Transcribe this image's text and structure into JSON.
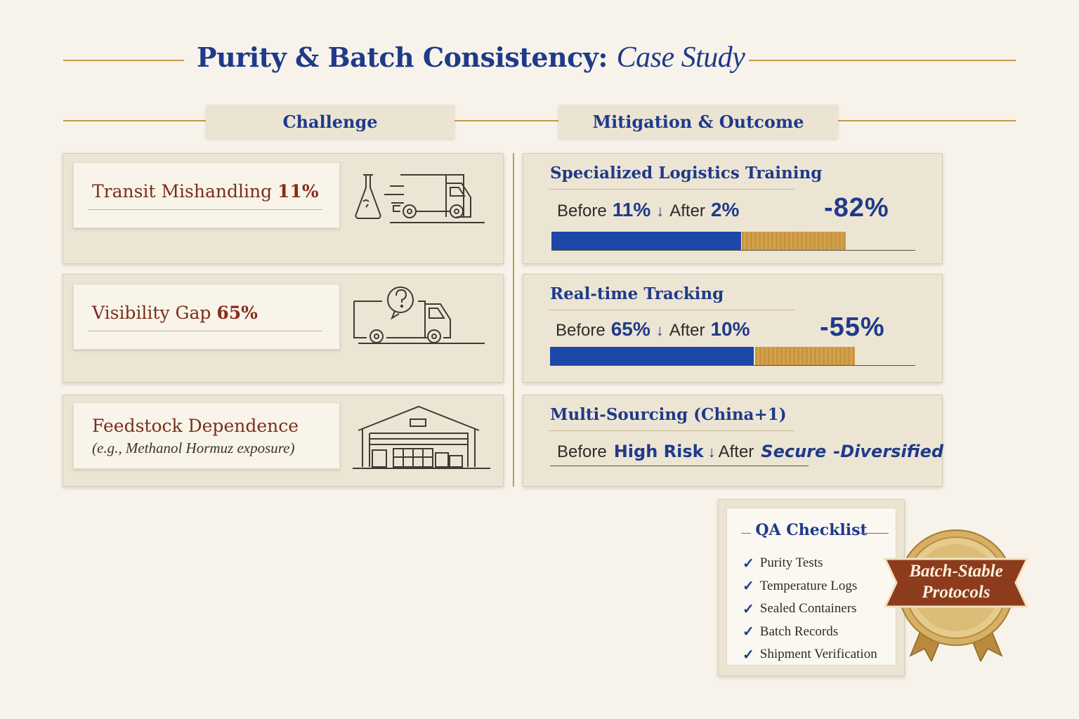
{
  "title": {
    "main": "Purity & Batch Consistency:",
    "sub": "Case Study"
  },
  "columns": {
    "challenge": "Challenge",
    "mitigation": "Mitigation & Outcome"
  },
  "challenges": [
    {
      "label": "Transit Mishandling",
      "value": "11%",
      "icon": "flask-truck-icon"
    },
    {
      "label": "Visibility Gap",
      "value": "65%",
      "icon": "truck-question-icon"
    },
    {
      "label": "Feedstock Dependence",
      "note": "(e.g., Methanol Hormuz exposure)",
      "icon": "warehouse-icon"
    }
  ],
  "mitigations": [
    {
      "title": "Specialized Logistics Training",
      "before_label": "Before",
      "before": "11%",
      "arrow": "↓",
      "after_label": "After",
      "after": "2%",
      "change": "-82%",
      "before_pct": 11,
      "after_pct": 2
    },
    {
      "title": "Real-time Tracking",
      "before_label": "Before",
      "before": "65%",
      "arrow": "↓",
      "after_label": "After",
      "after": "10%",
      "change": "-55%",
      "before_pct": 65,
      "after_pct": 10
    },
    {
      "title": "Multi-Sourcing (China+1)",
      "before_label": "Before",
      "before": "High Risk",
      "arrow": "↓",
      "after_label": "After",
      "after": "Secure",
      "after_extra": "-Diversified"
    }
  ],
  "qa": {
    "title": "QA Checklist",
    "items": [
      "Purity Tests",
      "Temperature Logs",
      "Sealed Containers",
      "Batch Records",
      "Shipment Verification"
    ]
  },
  "badge": {
    "line1": "Batch-Stable",
    "line2": "Protocols"
  },
  "colors": {
    "navy": "#1f3a8a",
    "maroon": "#7a2e1a",
    "gold": "#c39a4a",
    "bar_blue": "#1d47a8",
    "bar_tan": "#c9953c"
  }
}
